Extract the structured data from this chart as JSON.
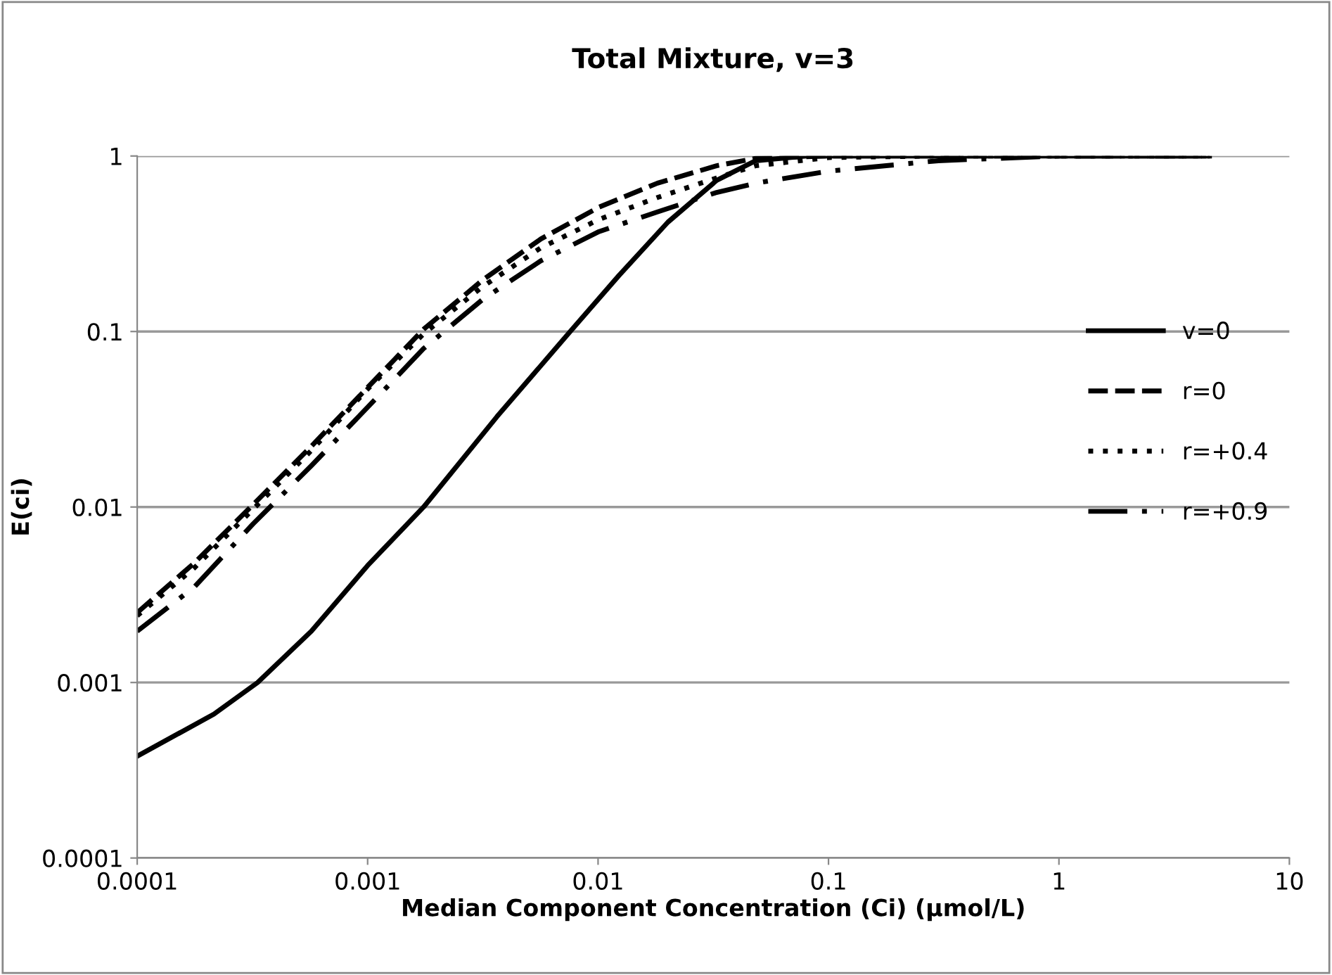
{
  "chart_data": {
    "type": "line",
    "title": "Total Mixture, v=3",
    "xlabel": "Median Component Concentration (Ci) (µmol/L)",
    "ylabel": "E(ci)",
    "log": "xy",
    "grid": "y",
    "legend": "right",
    "xlim": [
      0.0001,
      10
    ],
    "xticks": [
      0.0001,
      0.001,
      0.01,
      0.1,
      1,
      10
    ],
    "ylim": [
      0.0001,
      1
    ],
    "yticks": [
      0.0001,
      0.001,
      0.01,
      0.1,
      1
    ],
    "series": [
      {
        "name": "v=0",
        "color": "#000000",
        "line_style": "solid",
        "x": [
          0.0001,
          0.000215,
          0.000333,
          0.00057,
          0.001,
          0.00175,
          0.00364,
          0.00757,
          0.0123,
          0.0201,
          0.0327,
          0.0483,
          0.08,
          0.2,
          1,
          4.5
        ],
        "values": [
          0.00038,
          0.00066,
          0.001,
          0.00196,
          0.00464,
          0.01,
          0.0327,
          0.1,
          0.208,
          0.42,
          0.726,
          0.94,
          1,
          1,
          1,
          1
        ]
      },
      {
        "name": "r=0",
        "color": "#000000",
        "line_style": "dashed",
        "x": [
          0.0001,
          0.000177,
          0.000318,
          0.00057,
          0.001,
          0.00175,
          0.00315,
          0.00565,
          0.0101,
          0.0181,
          0.0327,
          0.0483,
          0.1,
          0.3,
          1,
          4.5
        ],
        "values": [
          0.0025,
          0.0048,
          0.0103,
          0.0222,
          0.048,
          0.103,
          0.196,
          0.337,
          0.511,
          0.7,
          0.88,
          0.97,
          1,
          1,
          1,
          1
        ]
      },
      {
        "name": "r=+0.4",
        "color": "#000000",
        "line_style": "dotted",
        "x": [
          0.0001,
          0.000177,
          0.000318,
          0.00057,
          0.001,
          0.00175,
          0.00315,
          0.00565,
          0.0101,
          0.0181,
          0.0327,
          0.0483,
          0.1,
          0.3,
          1,
          4.5
        ],
        "values": [
          0.0024,
          0.0045,
          0.0097,
          0.021,
          0.047,
          0.097,
          0.18,
          0.3,
          0.435,
          0.58,
          0.75,
          0.88,
          0.98,
          1,
          1,
          1
        ]
      },
      {
        "name": "r=+0.9",
        "color": "#000000",
        "line_style": "dashdot",
        "x": [
          0.0001,
          0.000177,
          0.000318,
          0.00057,
          0.001,
          0.00175,
          0.00315,
          0.00565,
          0.0101,
          0.0181,
          0.0327,
          0.0483,
          0.1,
          0.3,
          1,
          4.5
        ],
        "values": [
          0.00196,
          0.0035,
          0.008,
          0.0172,
          0.037,
          0.08,
          0.152,
          0.253,
          0.371,
          0.48,
          0.62,
          0.7,
          0.82,
          0.94,
          1,
          1
        ]
      }
    ]
  }
}
